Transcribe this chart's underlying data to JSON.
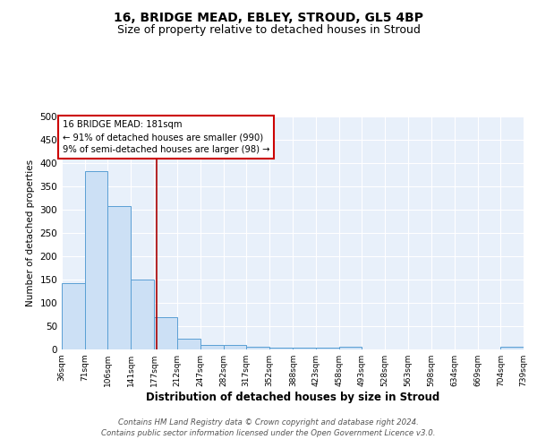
{
  "title": "16, BRIDGE MEAD, EBLEY, STROUD, GL5 4BP",
  "subtitle": "Size of property relative to detached houses in Stroud",
  "xlabel": "Distribution of detached houses by size in Stroud",
  "ylabel": "Number of detached properties",
  "bins": [
    36,
    71,
    106,
    141,
    177,
    212,
    247,
    282,
    317,
    352,
    388,
    423,
    458,
    493,
    528,
    563,
    598,
    634,
    669,
    704,
    739
  ],
  "counts": [
    143,
    383,
    307,
    150,
    70,
    23,
    10,
    9,
    5,
    4,
    4,
    4,
    5,
    0,
    0,
    0,
    0,
    0,
    0,
    5,
    0
  ],
  "bar_fill": "#cce0f5",
  "bar_edge": "#5a9fd4",
  "bg_color": "#e8f0fa",
  "property_size": 181,
  "vline_color": "#aa0000",
  "annotation_text": "16 BRIDGE MEAD: 181sqm\n← 91% of detached houses are smaller (990)\n9% of semi-detached houses are larger (98) →",
  "annotation_box_color": "#ffffff",
  "annotation_box_edge": "#cc0000",
  "footer": "Contains HM Land Registry data © Crown copyright and database right 2024.\nContains public sector information licensed under the Open Government Licence v3.0.",
  "ylim": [
    0,
    500
  ],
  "yticks": [
    0,
    50,
    100,
    150,
    200,
    250,
    300,
    350,
    400,
    450,
    500
  ],
  "title_fontsize": 10,
  "subtitle_fontsize": 9
}
